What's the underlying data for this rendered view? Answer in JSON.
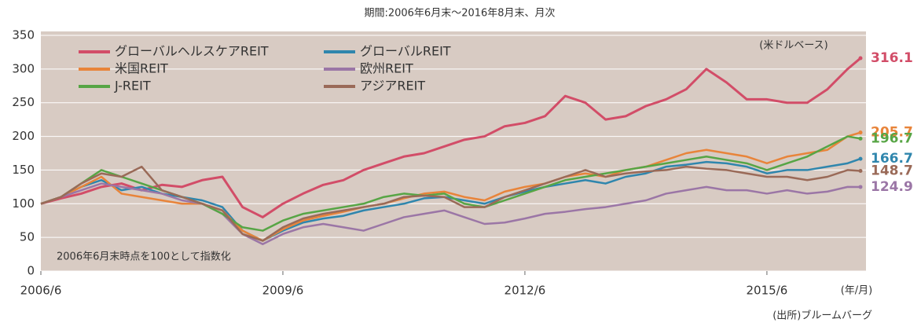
{
  "chart_data": {
    "type": "line",
    "subtitle": "期間:2006年6月末～2016年8月末、月次",
    "annotations": [
      "(米ドルベース)",
      "2006年6月末時点を100として指数化"
    ],
    "x_unit_label": "(年/月)",
    "source": "(出所)ブルームバーグ",
    "x": [
      2006.42,
      2006.67,
      2006.92,
      2007.17,
      2007.42,
      2007.67,
      2007.92,
      2008.17,
      2008.42,
      2008.67,
      2008.92,
      2009.17,
      2009.42,
      2009.67,
      2009.92,
      2010.17,
      2010.42,
      2010.67,
      2010.92,
      2011.17,
      2011.42,
      2011.67,
      2011.92,
      2012.17,
      2012.42,
      2012.67,
      2012.92,
      2013.17,
      2013.42,
      2013.67,
      2013.92,
      2014.17,
      2014.42,
      2014.67,
      2014.92,
      2015.17,
      2015.42,
      2015.67,
      2015.92,
      2016.17,
      2016.42,
      2016.58
    ],
    "xlim": [
      2006.42,
      2016.58
    ],
    "xticks": [
      {
        "value": 2006.42,
        "label": "2006/6"
      },
      {
        "value": 2009.42,
        "label": "2009/6"
      },
      {
        "value": 2012.42,
        "label": "2012/6"
      },
      {
        "value": 2015.42,
        "label": "2015/6"
      }
    ],
    "ylim": [
      0,
      350
    ],
    "yticks": [
      0,
      50,
      100,
      150,
      200,
      250,
      300,
      350
    ],
    "grid": true,
    "legend": "top-left",
    "series": [
      {
        "name": "グローバルヘルスケアREIT",
        "color": "#d24d68",
        "values": [
          100,
          108,
          115,
          125,
          130,
          120,
          128,
          125,
          135,
          140,
          95,
          80,
          100,
          115,
          128,
          135,
          150,
          160,
          170,
          175,
          185,
          195,
          200,
          215,
          220,
          230,
          260,
          250,
          225,
          230,
          245,
          255,
          270,
          300,
          280,
          255,
          255,
          250,
          250,
          270,
          300,
          316.1
        ]
      },
      {
        "name": "グローバルREIT",
        "color": "#2f86ad",
        "values": [
          100,
          110,
          125,
          135,
          120,
          125,
          115,
          110,
          105,
          95,
          60,
          45,
          60,
          72,
          78,
          82,
          90,
          95,
          100,
          108,
          110,
          105,
          100,
          110,
          118,
          125,
          130,
          135,
          130,
          140,
          145,
          155,
          158,
          162,
          160,
          155,
          145,
          150,
          150,
          155,
          160,
          166.7
        ]
      },
      {
        "name": "米国REIT",
        "color": "#e8843a",
        "values": [
          100,
          110,
          125,
          140,
          115,
          110,
          105,
          100,
          100,
          90,
          60,
          45,
          62,
          75,
          82,
          88,
          95,
          100,
          108,
          115,
          118,
          110,
          105,
          118,
          125,
          130,
          140,
          145,
          140,
          150,
          155,
          165,
          175,
          180,
          175,
          170,
          160,
          170,
          175,
          180,
          200,
          205.7
        ]
      },
      {
        "name": "欧州REIT",
        "color": "#9b76a6",
        "values": [
          100,
          110,
          120,
          130,
          125,
          120,
          115,
          105,
          100,
          85,
          55,
          40,
          55,
          65,
          70,
          65,
          60,
          70,
          80,
          85,
          90,
          80,
          70,
          72,
          78,
          85,
          88,
          92,
          95,
          100,
          105,
          115,
          120,
          125,
          120,
          120,
          115,
          120,
          115,
          118,
          125,
          124.9
        ]
      },
      {
        "name": "J-REIT",
        "color": "#57a545",
        "values": [
          100,
          110,
          130,
          150,
          140,
          130,
          120,
          110,
          100,
          85,
          65,
          60,
          75,
          85,
          90,
          95,
          100,
          110,
          115,
          112,
          115,
          100,
          95,
          105,
          115,
          125,
          135,
          140,
          145,
          150,
          155,
          160,
          165,
          170,
          165,
          160,
          150,
          160,
          170,
          185,
          200,
          196.7
        ]
      },
      {
        "name": "アジアREIT",
        "color": "#9a6a58",
        "values": [
          100,
          110,
          130,
          145,
          140,
          155,
          120,
          110,
          100,
          90,
          55,
          45,
          65,
          78,
          85,
          90,
          95,
          100,
          110,
          112,
          110,
          95,
          95,
          110,
          120,
          130,
          140,
          150,
          140,
          145,
          148,
          150,
          155,
          152,
          150,
          145,
          140,
          140,
          135,
          140,
          150,
          148.7
        ]
      }
    ]
  }
}
